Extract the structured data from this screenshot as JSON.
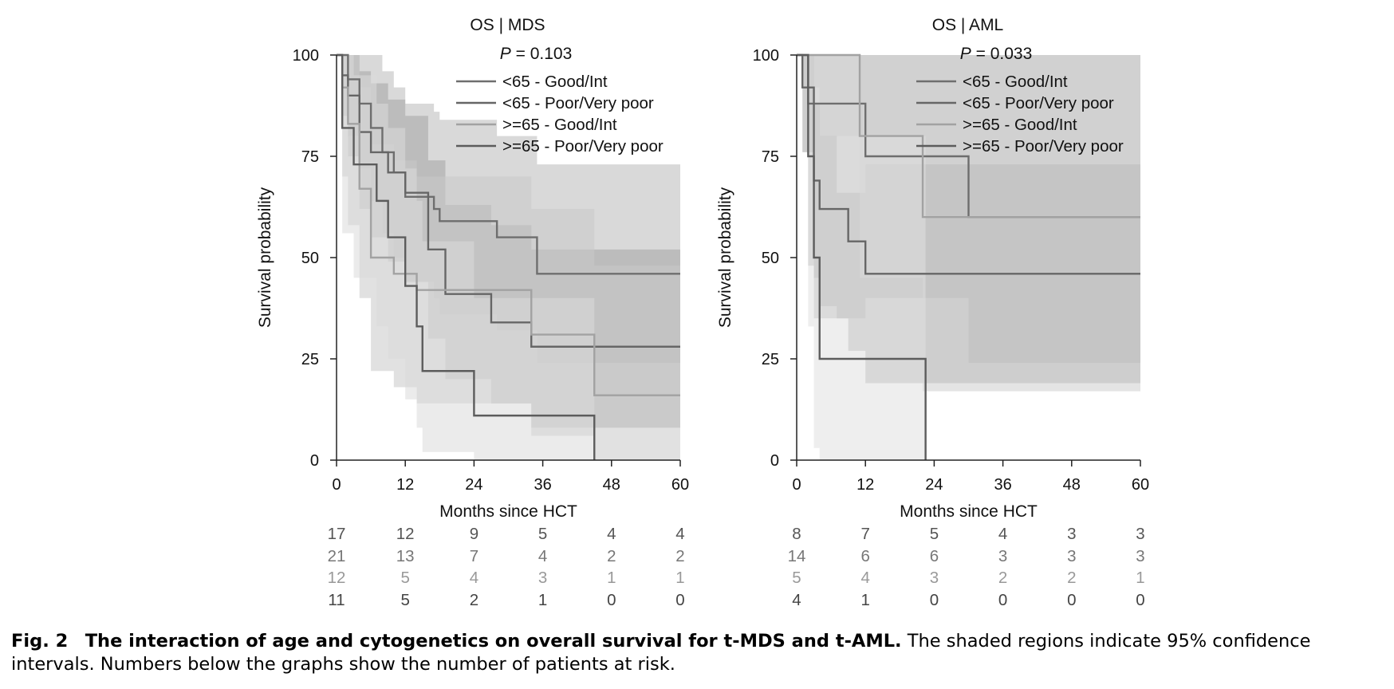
{
  "chart_data": [
    {
      "type": "line",
      "title": "OS | MDS",
      "p_label": "P",
      "p_value": "= 0.103",
      "xlabel": "Months since HCT",
      "ylabel": "Survival probability",
      "xlim": [
        0,
        60
      ],
      "ylim": [
        0,
        100
      ],
      "xticks": [
        "0",
        "12",
        "24",
        "36",
        "48",
        "60"
      ],
      "yticks": [
        "0",
        "25",
        "50",
        "75",
        "100"
      ],
      "grid": false,
      "legend_position": "top-right",
      "series": [
        {
          "name": "<65 - Good/Int",
          "color": "#6e6e6e",
          "ci_color": "#b9b9b9",
          "x": [
            0,
            2,
            4,
            6,
            8,
            10,
            12,
            17,
            18,
            28,
            35,
            60
          ],
          "y": [
            100,
            94,
            88,
            82,
            76,
            71,
            65,
            62,
            59,
            55,
            46,
            46
          ],
          "ci_upper": [
            100,
            100,
            100,
            100,
            96,
            92,
            88,
            86,
            84,
            80,
            73,
            73
          ],
          "ci_lower": [
            100,
            80,
            72,
            64,
            56,
            50,
            44,
            40,
            36,
            32,
            24,
            24
          ],
          "at_risk": [
            "17",
            "12",
            "9",
            "5",
            "4",
            "4"
          ],
          "risk_color": "#555555"
        },
        {
          "name": "<65 - Poor/Very poor",
          "color": "#666666",
          "ci_color": "#a4a4a4",
          "x": [
            0,
            1,
            2,
            4,
            6,
            9,
            12,
            16,
            19,
            27,
            34,
            60
          ],
          "y": [
            100,
            95,
            90,
            81,
            76,
            71,
            66,
            52,
            41,
            34,
            28,
            28
          ],
          "ci_upper": [
            100,
            100,
            100,
            96,
            93,
            89,
            85,
            74,
            63,
            58,
            52,
            52
          ],
          "ci_lower": [
            100,
            85,
            75,
            62,
            55,
            49,
            44,
            30,
            20,
            14,
            8,
            8
          ],
          "at_risk": [
            "21",
            "13",
            "7",
            "4",
            "2",
            "2"
          ],
          "risk_color": "#777777"
        },
        {
          "name": ">=65 - Good/Int",
          "color": "#a2a2a2",
          "ci_color": "#c9c9c9",
          "x": [
            0,
            1,
            2,
            4,
            6,
            10,
            14,
            34,
            45,
            60
          ],
          "y": [
            100,
            92,
            83,
            67,
            50,
            46,
            42,
            31,
            16,
            16
          ],
          "ci_upper": [
            100,
            100,
            100,
            92,
            78,
            74,
            70,
            62,
            48,
            48
          ],
          "ci_lower": [
            100,
            70,
            58,
            40,
            22,
            18,
            14,
            6,
            0,
            0
          ],
          "at_risk": [
            "12",
            "5",
            "4",
            "3",
            "1",
            "1"
          ],
          "risk_color": "#999999"
        },
        {
          "name": ">=65 - Poor/Very poor",
          "color": "#5c5c5c",
          "ci_color": "#dadada",
          "x": [
            0,
            1,
            3,
            7,
            9,
            12,
            14,
            15,
            24,
            45
          ],
          "y": [
            100,
            82,
            73,
            64,
            55,
            43,
            33,
            22,
            11,
            0
          ],
          "ci_upper": [
            100,
            100,
            95,
            88,
            82,
            72,
            64,
            54,
            40,
            0
          ],
          "ci_lower": [
            100,
            56,
            45,
            33,
            25,
            15,
            8,
            2,
            0,
            0
          ],
          "at_risk": [
            "11",
            "5",
            "2",
            "1",
            "0",
            "0"
          ],
          "risk_color": "#444444"
        }
      ]
    },
    {
      "type": "line",
      "title": "OS | AML",
      "p_label": "P",
      "p_value": "= 0.033",
      "xlabel": "Months since HCT",
      "ylabel": "Survival probability",
      "xlim": [
        0,
        60
      ],
      "ylim": [
        0,
        100
      ],
      "xticks": [
        "0",
        "12",
        "24",
        "36",
        "48",
        "60"
      ],
      "yticks": [
        "0",
        "25",
        "50",
        "75",
        "100"
      ],
      "grid": false,
      "legend_position": "top-right",
      "series": [
        {
          "name": "<65 - Good/Int",
          "color": "#6e6e6e",
          "ci_color": "#b3b3b3",
          "x": [
            0,
            2,
            3,
            12,
            30,
            60
          ],
          "y": [
            100,
            88,
            88,
            75,
            60,
            60
          ],
          "ci_upper": [
            100,
            100,
            100,
            100,
            100,
            100
          ],
          "ci_lower": [
            100,
            48,
            35,
            40,
            24,
            24
          ],
          "at_risk": [
            "8",
            "7",
            "5",
            "4",
            "3",
            "3"
          ],
          "risk_color": "#555555"
        },
        {
          "name": "<65 - Poor/Very poor",
          "color": "#666666",
          "ci_color": "#a6a6a6",
          "x": [
            0,
            1,
            3,
            4,
            7,
            9,
            12,
            60
          ],
          "y": [
            100,
            92,
            69,
            62,
            62,
            54,
            46,
            46
          ],
          "ci_upper": [
            100,
            100,
            88,
            80,
            66,
            66,
            73,
            73
          ],
          "ci_lower": [
            100,
            76,
            45,
            38,
            35,
            27,
            19,
            19
          ],
          "at_risk": [
            "14",
            "6",
            "6",
            "3",
            "3",
            "3"
          ],
          "risk_color": "#777777"
        },
        {
          "name": ">=65 - Good/Int",
          "color": "#a2a2a2",
          "ci_color": "#cdcdcd",
          "x": [
            0,
            1,
            11,
            22,
            60
          ],
          "y": [
            100,
            100,
            80,
            60,
            60
          ],
          "ci_upper": [
            100,
            100,
            100,
            100,
            100
          ],
          "ci_lower": [
            100,
            100,
            45,
            17,
            17
          ],
          "at_risk": [
            "5",
            "4",
            "3",
            "2",
            "2",
            "1"
          ],
          "risk_color": "#999999"
        },
        {
          "name": ">=65 - Poor/Very poor",
          "color": "#5c5c5c",
          "ci_color": "#e0e0e0",
          "x": [
            0,
            2,
            3,
            4,
            22.5
          ],
          "y": [
            100,
            75,
            50,
            25,
            0
          ],
          "ci_upper": [
            100,
            100,
            92,
            80,
            0
          ],
          "ci_lower": [
            100,
            33,
            3,
            0,
            0
          ],
          "at_risk": [
            "4",
            "1",
            "0",
            "0",
            "0",
            "0"
          ],
          "risk_color": "#444444"
        }
      ]
    }
  ],
  "caption": {
    "label": "Fig. 2",
    "title": "The interaction of age and cytogenetics on overall survival for t-MDS and t-AML.",
    "text": "The shaded regions indicate 95% confidence intervals. Numbers below the graphs show the number of patients at risk."
  }
}
